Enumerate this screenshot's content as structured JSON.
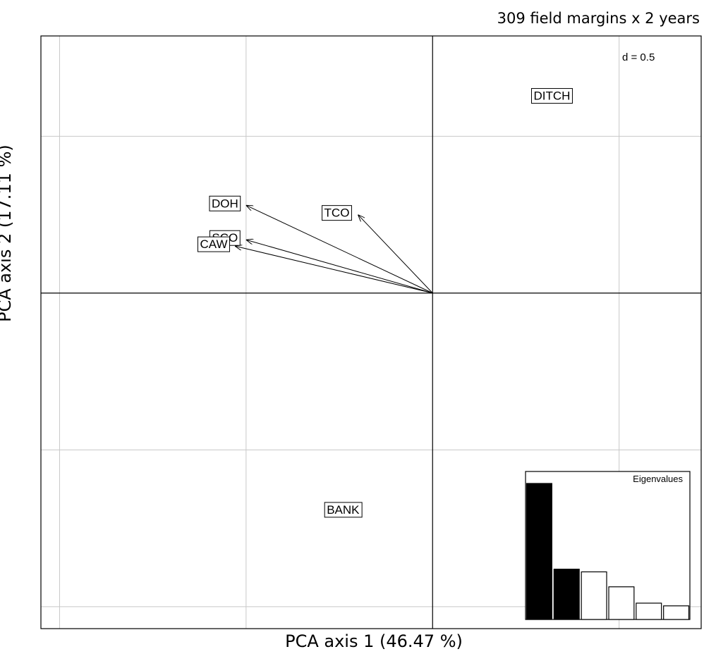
{
  "chart_data": {
    "type": "scatter",
    "subtype": "pca-biplot",
    "title": "309 field margins x 2 years",
    "xlabel": "PCA axis 1 (46.47 %)",
    "ylabel": "PCA axis 2 (17.11 %)",
    "grid_label": "d = 0.5",
    "xlim": [
      -1.05,
      0.72
    ],
    "ylim": [
      -1.07,
      0.82
    ],
    "grid": true,
    "grid_step": 0.5,
    "arrows": [
      {
        "label": "DOH",
        "x": -0.5,
        "y": 0.28
      },
      {
        "label": "TCO",
        "x": -0.2,
        "y": 0.25
      },
      {
        "label": "SCO",
        "x": -0.5,
        "y": 0.17
      },
      {
        "label": "CAW",
        "x": -0.53,
        "y": 0.15
      }
    ],
    "points": [
      {
        "label": "DITCH",
        "x": 0.32,
        "y": 0.63
      },
      {
        "label": "BANK",
        "x": -0.24,
        "y": -0.69
      }
    ],
    "eigenvalues": {
      "title": "Eigenvalues",
      "values": [
        1,
        0.37,
        0.35,
        0.24,
        0.12,
        0.1
      ],
      "highlighted": 2
    }
  }
}
